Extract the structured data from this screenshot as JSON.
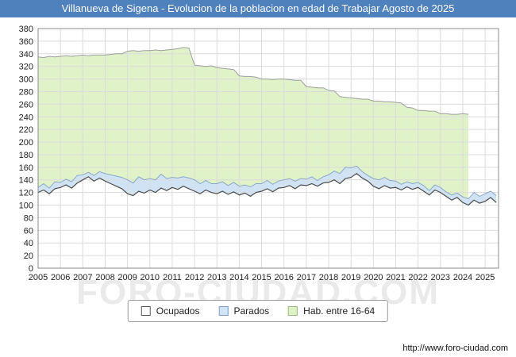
{
  "title": "Villanueva de Sigena - Evolucion de la poblacion en edad de Trabajar Agosto de 2025",
  "watermark": "FORO-CIUDAD.COM",
  "footer_url": "http://www.foro-ciudad.com",
  "colors": {
    "title_bar_bg": "#4f81bd",
    "title_text": "#ffffff",
    "grid": "#dcdcdc",
    "plot_border": "#8c8c8c",
    "watermark": "#d9d9d9",
    "tick_text": "#222222"
  },
  "legend": [
    {
      "label": "Ocupados",
      "color": "#ffffff",
      "border": "#555555"
    },
    {
      "label": "Parados",
      "color": "#cfe3f5",
      "border": "#7f9fbf"
    },
    {
      "label": "Hab. entre 16-64",
      "color": "#dff2c8",
      "border": "#9bb97f"
    }
  ],
  "chart_data": {
    "type": "area",
    "title": "Villanueva de Sigena - Evolucion de la poblacion en edad de Trabajar Agosto de 2025",
    "xlabel": "",
    "ylabel": "",
    "grid": true,
    "legend_position": "bottom",
    "ylim": [
      0,
      380
    ],
    "ytick_step": 20,
    "xlim": [
      2005,
      2025.6
    ],
    "x_years": [
      2005,
      2006,
      2007,
      2008,
      2009,
      2010,
      2011,
      2012,
      2013,
      2014,
      2015,
      2016,
      2017,
      2018,
      2019,
      2020,
      2021,
      2022,
      2023,
      2024,
      2025
    ],
    "x_start": 2005,
    "x_step": 0.25,
    "series": [
      {
        "name": "Hab. entre 16-64",
        "fill": "#dff2c8",
        "stroke": "#9e9e9e",
        "values": [
          335,
          334,
          336,
          335,
          336,
          337,
          336,
          337,
          338,
          337,
          338,
          338,
          338,
          339,
          340,
          340,
          344,
          345,
          344,
          345,
          345,
          346,
          345,
          346,
          347,
          348,
          350,
          349,
          322,
          321,
          320,
          321,
          318,
          317,
          316,
          315,
          305,
          304,
          304,
          303,
          300,
          300,
          299,
          300,
          300,
          299,
          298,
          298,
          288,
          287,
          286,
          286,
          282,
          281,
          272,
          271,
          270,
          269,
          268,
          268,
          265,
          265,
          264,
          264,
          263,
          262,
          255,
          254,
          250,
          250,
          249,
          249,
          245,
          245,
          244,
          244,
          245,
          244,
          null,
          null,
          null,
          null,
          null
        ]
      },
      {
        "name": "Parados",
        "fill": "#cfe3f5",
        "stroke": "#89a8c8",
        "stacked_on": "Ocupados",
        "values": [
          8,
          10,
          9,
          11,
          8,
          9,
          10,
          12,
          8,
          7,
          9,
          10,
          12,
          14,
          16,
          18,
          22,
          20,
          23,
          21,
          18,
          20,
          22,
          19,
          16,
          18,
          15,
          17,
          18,
          16,
          15,
          14,
          16,
          15,
          14,
          15,
          14,
          13,
          15,
          14,
          12,
          13,
          12,
          11,
          12,
          11,
          12,
          10,
          10,
          11,
          9,
          10,
          12,
          14,
          16,
          18,
          15,
          12,
          10,
          9,
          12,
          14,
          13,
          12,
          10,
          9,
          8,
          9,
          8,
          9,
          7,
          8,
          8,
          7,
          8,
          7,
          9,
          10,
          12,
          11,
          12,
          10,
          11
        ]
      },
      {
        "name": "Ocupados",
        "fill": "#ffffff",
        "stroke": "#4d4d4d",
        "values": [
          120,
          124,
          118,
          126,
          128,
          132,
          127,
          135,
          140,
          145,
          138,
          143,
          138,
          134,
          130,
          126,
          118,
          115,
          122,
          119,
          124,
          120,
          127,
          123,
          128,
          125,
          130,
          126,
          122,
          118,
          124,
          120,
          118,
          122,
          117,
          121,
          116,
          119,
          114,
          120,
          122,
          126,
          121,
          127,
          128,
          131,
          126,
          132,
          131,
          134,
          130,
          135,
          136,
          140,
          134,
          142,
          144,
          150,
          143,
          138,
          130,
          126,
          131,
          127,
          128,
          124,
          129,
          125,
          128,
          122,
          116,
          124,
          120,
          114,
          108,
          112,
          104,
          100,
          108,
          103,
          106,
          112,
          104
        ]
      }
    ]
  }
}
